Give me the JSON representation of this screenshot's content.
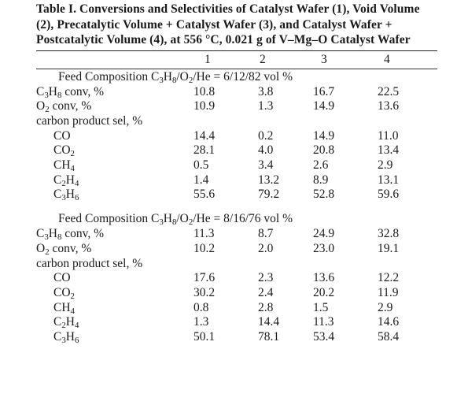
{
  "caption": "Table I. Conversions and Selectivities of Catalyst Wafer (1), Void Volume (2), Precatalytic Volume + Catalyst Wafer (3), and Catalyst Wafer + Postcatalytic Volume (4), at 556 °C, 0.021 g of V–Mg–O Catalyst Wafer",
  "columns": [
    "1",
    "2",
    "3",
    "4"
  ],
  "sections": [
    {
      "feed": {
        "prefix": "Feed Composition C",
        "s1": "3",
        "mid": "H",
        "s2": "8",
        "suffix": "/O",
        "s3": "2",
        "tail": "/He = 6/12/82 vol %"
      },
      "rows": [
        {
          "lbl": "C",
          "lbl_s1": "3",
          "lbl_m": "H",
          "lbl_s2": "8",
          "lbl_t": " conv, %",
          "indent": false,
          "values": [
            "10.8",
            "3.8",
            "16.7",
            "22.5"
          ]
        },
        {
          "lbl": "O",
          "lbl_s1": "2",
          "lbl_m": "",
          "lbl_s2": "",
          "lbl_t": " conv, %",
          "indent": false,
          "values": [
            "10.9",
            "1.3",
            "14.9",
            "13.6"
          ]
        },
        {
          "lbl": "carbon product sel, %",
          "lbl_s1": "",
          "lbl_m": "",
          "lbl_s2": "",
          "lbl_t": "",
          "indent": false,
          "values": [
            "",
            "",
            "",
            ""
          ]
        },
        {
          "lbl": "CO",
          "lbl_s1": "",
          "lbl_m": "",
          "lbl_s2": "",
          "lbl_t": "",
          "indent": true,
          "values": [
            "14.4",
            "0.2",
            "14.9",
            "11.0"
          ]
        },
        {
          "lbl": "CO",
          "lbl_s1": "2",
          "lbl_m": "",
          "lbl_s2": "",
          "lbl_t": "",
          "indent": true,
          "values": [
            "28.1",
            "4.0",
            "20.8",
            "13.4"
          ]
        },
        {
          "lbl": "CH",
          "lbl_s1": "4",
          "lbl_m": "",
          "lbl_s2": "",
          "lbl_t": "",
          "indent": true,
          "values": [
            "0.5",
            "3.4",
            "2.6",
            "2.9"
          ]
        },
        {
          "lbl": "C",
          "lbl_s1": "2",
          "lbl_m": "H",
          "lbl_s2": "4",
          "lbl_t": "",
          "indent": true,
          "values": [
            "1.4",
            "13.2",
            "8.9",
            "13.1"
          ]
        },
        {
          "lbl": "C",
          "lbl_s1": "3",
          "lbl_m": "H",
          "lbl_s2": "6",
          "lbl_t": "",
          "indent": true,
          "values": [
            "55.6",
            "79.2",
            "52.8",
            "59.6"
          ]
        }
      ]
    },
    {
      "feed": {
        "prefix": "Feed Composition C",
        "s1": "3",
        "mid": "H",
        "s2": "8",
        "suffix": "/O",
        "s3": "2",
        "tail": "/He = 8/16/76 vol %"
      },
      "rows": [
        {
          "lbl": "C",
          "lbl_s1": "3",
          "lbl_m": "H",
          "lbl_s2": "8",
          "lbl_t": " conv, %",
          "indent": false,
          "values": [
            "11.3",
            "8.7",
            "24.9",
            "32.8"
          ]
        },
        {
          "lbl": "O",
          "lbl_s1": "2",
          "lbl_m": "",
          "lbl_s2": "",
          "lbl_t": " conv, %",
          "indent": false,
          "values": [
            "10.2",
            "2.0",
            "23.0",
            "19.1"
          ]
        },
        {
          "lbl": "carbon product sel, %",
          "lbl_s1": "",
          "lbl_m": "",
          "lbl_s2": "",
          "lbl_t": "",
          "indent": false,
          "values": [
            "",
            "",
            "",
            ""
          ]
        },
        {
          "lbl": "CO",
          "lbl_s1": "",
          "lbl_m": "",
          "lbl_s2": "",
          "lbl_t": "",
          "indent": true,
          "values": [
            "17.6",
            "2.3",
            "13.6",
            "12.2"
          ]
        },
        {
          "lbl": "CO",
          "lbl_s1": "2",
          "lbl_m": "",
          "lbl_s2": "",
          "lbl_t": "",
          "indent": true,
          "values": [
            "30.2",
            "2.4",
            "20.2",
            "11.9"
          ]
        },
        {
          "lbl": "CH",
          "lbl_s1": "4",
          "lbl_m": "",
          "lbl_s2": "",
          "lbl_t": "",
          "indent": true,
          "values": [
            "0.8",
            "2.8",
            "1.5",
            "2.9"
          ]
        },
        {
          "lbl": "C",
          "lbl_s1": "2",
          "lbl_m": "H",
          "lbl_s2": "4",
          "lbl_t": "",
          "indent": true,
          "values": [
            "1.3",
            "14.4",
            "11.3",
            "14.6"
          ]
        },
        {
          "lbl": "C",
          "lbl_s1": "3",
          "lbl_m": "H",
          "lbl_s2": "6",
          "lbl_t": "",
          "indent": true,
          "values": [
            "50.1",
            "78.1",
            "53.4",
            "58.4"
          ]
        }
      ]
    }
  ]
}
